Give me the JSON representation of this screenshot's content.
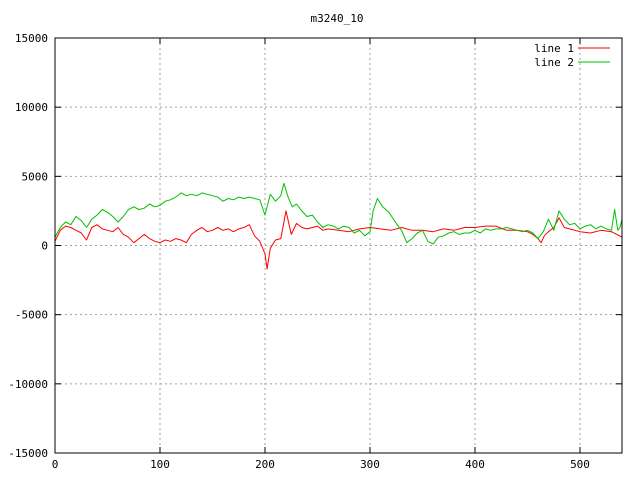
{
  "chart_data": {
    "type": "line",
    "title": "m3240_10",
    "xlabel": "",
    "ylabel": "",
    "xlim": [
      0,
      540
    ],
    "ylim": [
      -15000,
      15000
    ],
    "x_ticks": [
      0,
      100,
      200,
      300,
      400,
      500
    ],
    "y_ticks": [
      -15000,
      -10000,
      -5000,
      0,
      5000,
      10000,
      15000
    ],
    "grid": true,
    "legend_position": "top-right",
    "series": [
      {
        "name": "line 1",
        "color": "#ff0000",
        "points": [
          [
            0,
            300
          ],
          [
            5,
            1100
          ],
          [
            10,
            1400
          ],
          [
            15,
            1300
          ],
          [
            20,
            1100
          ],
          [
            25,
            900
          ],
          [
            30,
            400
          ],
          [
            35,
            1300
          ],
          [
            40,
            1500
          ],
          [
            45,
            1200
          ],
          [
            50,
            1100
          ],
          [
            55,
            1000
          ],
          [
            60,
            1300
          ],
          [
            65,
            800
          ],
          [
            70,
            600
          ],
          [
            75,
            200
          ],
          [
            80,
            500
          ],
          [
            85,
            800
          ],
          [
            90,
            500
          ],
          [
            95,
            300
          ],
          [
            100,
            200
          ],
          [
            105,
            400
          ],
          [
            110,
            300
          ],
          [
            115,
            500
          ],
          [
            120,
            400
          ],
          [
            125,
            200
          ],
          [
            130,
            800
          ],
          [
            135,
            1100
          ],
          [
            140,
            1300
          ],
          [
            145,
            1000
          ],
          [
            150,
            1100
          ],
          [
            155,
            1300
          ],
          [
            160,
            1100
          ],
          [
            165,
            1200
          ],
          [
            170,
            1000
          ],
          [
            175,
            1200
          ],
          [
            180,
            1300
          ],
          [
            185,
            1500
          ],
          [
            190,
            700
          ],
          [
            195,
            300
          ],
          [
            200,
            -600
          ],
          [
            202,
            -1700
          ],
          [
            205,
            -200
          ],
          [
            210,
            400
          ],
          [
            215,
            500
          ],
          [
            220,
            2500
          ],
          [
            225,
            800
          ],
          [
            230,
            1600
          ],
          [
            235,
            1300
          ],
          [
            240,
            1200
          ],
          [
            245,
            1300
          ],
          [
            250,
            1400
          ],
          [
            255,
            1100
          ],
          [
            260,
            1200
          ],
          [
            270,
            1100
          ],
          [
            280,
            1000
          ],
          [
            290,
            1200
          ],
          [
            300,
            1300
          ],
          [
            310,
            1200
          ],
          [
            320,
            1100
          ],
          [
            330,
            1300
          ],
          [
            340,
            1100
          ],
          [
            350,
            1100
          ],
          [
            360,
            1000
          ],
          [
            370,
            1200
          ],
          [
            380,
            1100
          ],
          [
            390,
            1300
          ],
          [
            400,
            1300
          ],
          [
            410,
            1400
          ],
          [
            420,
            1400
          ],
          [
            430,
            1100
          ],
          [
            440,
            1100
          ],
          [
            450,
            1000
          ],
          [
            455,
            800
          ],
          [
            460,
            500
          ],
          [
            463,
            200
          ],
          [
            466,
            700
          ],
          [
            470,
            1000
          ],
          [
            475,
            1300
          ],
          [
            480,
            2000
          ],
          [
            485,
            1300
          ],
          [
            490,
            1200
          ],
          [
            500,
            1000
          ],
          [
            510,
            900
          ],
          [
            520,
            1100
          ],
          [
            530,
            1000
          ],
          [
            535,
            800
          ],
          [
            540,
            600
          ]
        ]
      },
      {
        "name": "line 2",
        "color": "#00c000",
        "points": [
          [
            0,
            600
          ],
          [
            5,
            1300
          ],
          [
            10,
            1700
          ],
          [
            15,
            1500
          ],
          [
            20,
            2100
          ],
          [
            25,
            1800
          ],
          [
            30,
            1300
          ],
          [
            35,
            1900
          ],
          [
            40,
            2200
          ],
          [
            45,
            2600
          ],
          [
            50,
            2400
          ],
          [
            55,
            2100
          ],
          [
            60,
            1700
          ],
          [
            65,
            2100
          ],
          [
            70,
            2600
          ],
          [
            75,
            2800
          ],
          [
            80,
            2600
          ],
          [
            85,
            2700
          ],
          [
            90,
            3000
          ],
          [
            95,
            2800
          ],
          [
            100,
            2900
          ],
          [
            105,
            3200
          ],
          [
            110,
            3300
          ],
          [
            115,
            3500
          ],
          [
            120,
            3800
          ],
          [
            125,
            3600
          ],
          [
            130,
            3700
          ],
          [
            135,
            3600
          ],
          [
            140,
            3800
          ],
          [
            145,
            3700
          ],
          [
            150,
            3600
          ],
          [
            155,
            3500
          ],
          [
            160,
            3200
          ],
          [
            165,
            3400
          ],
          [
            170,
            3300
          ],
          [
            175,
            3500
          ],
          [
            180,
            3400
          ],
          [
            185,
            3500
          ],
          [
            190,
            3400
          ],
          [
            195,
            3300
          ],
          [
            200,
            2200
          ],
          [
            205,
            3700
          ],
          [
            210,
            3200
          ],
          [
            215,
            3600
          ],
          [
            218,
            4500
          ],
          [
            222,
            3500
          ],
          [
            226,
            2800
          ],
          [
            230,
            3000
          ],
          [
            235,
            2500
          ],
          [
            240,
            2100
          ],
          [
            245,
            2200
          ],
          [
            250,
            1700
          ],
          [
            255,
            1300
          ],
          [
            260,
            1500
          ],
          [
            265,
            1400
          ],
          [
            270,
            1200
          ],
          [
            275,
            1400
          ],
          [
            280,
            1300
          ],
          [
            285,
            900
          ],
          [
            290,
            1100
          ],
          [
            295,
            700
          ],
          [
            300,
            1000
          ],
          [
            303,
            2500
          ],
          [
            307,
            3400
          ],
          [
            312,
            2800
          ],
          [
            318,
            2400
          ],
          [
            325,
            1600
          ],
          [
            330,
            1100
          ],
          [
            335,
            200
          ],
          [
            340,
            500
          ],
          [
            345,
            900
          ],
          [
            350,
            1100
          ],
          [
            355,
            300
          ],
          [
            360,
            100
          ],
          [
            365,
            600
          ],
          [
            370,
            700
          ],
          [
            375,
            900
          ],
          [
            380,
            1000
          ],
          [
            385,
            800
          ],
          [
            390,
            900
          ],
          [
            395,
            900
          ],
          [
            400,
            1100
          ],
          [
            405,
            900
          ],
          [
            410,
            1200
          ],
          [
            415,
            1100
          ],
          [
            420,
            1200
          ],
          [
            425,
            1200
          ],
          [
            430,
            1300
          ],
          [
            435,
            1200
          ],
          [
            440,
            1100
          ],
          [
            445,
            1000
          ],
          [
            450,
            1100
          ],
          [
            455,
            900
          ],
          [
            460,
            500
          ],
          [
            465,
            1000
          ],
          [
            470,
            1900
          ],
          [
            475,
            1100
          ],
          [
            480,
            2500
          ],
          [
            485,
            1900
          ],
          [
            490,
            1500
          ],
          [
            495,
            1600
          ],
          [
            500,
            1200
          ],
          [
            505,
            1400
          ],
          [
            510,
            1500
          ],
          [
            515,
            1200
          ],
          [
            520,
            1400
          ],
          [
            525,
            1200
          ],
          [
            530,
            1100
          ],
          [
            533,
            2600
          ],
          [
            536,
            1100
          ],
          [
            538,
            1300
          ],
          [
            540,
            1900
          ]
        ]
      }
    ]
  }
}
